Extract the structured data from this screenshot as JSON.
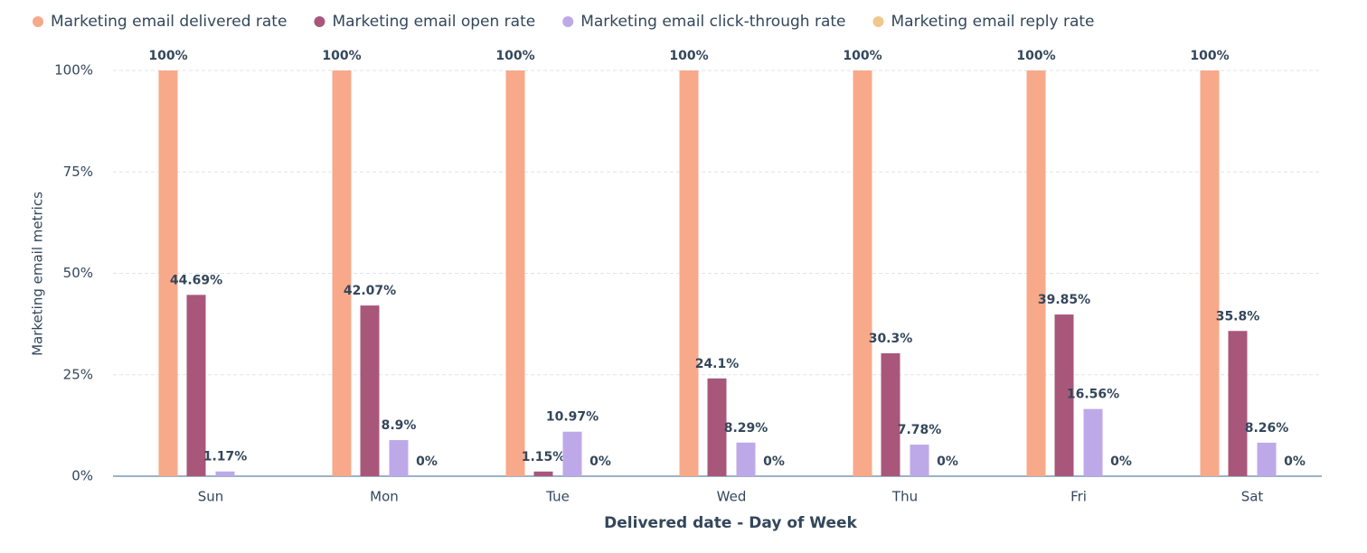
{
  "chart_data": {
    "type": "bar",
    "x_label": "Delivered date - Day of Week",
    "y_label": "Marketing email metrics",
    "categories": [
      "Sun",
      "Mon",
      "Tue",
      "Wed",
      "Thu",
      "Fri",
      "Sat"
    ],
    "series": [
      {
        "name": "Marketing email delivered rate",
        "color": "#f8a98a",
        "values": [
          100,
          100,
          100,
          100,
          100,
          100,
          100
        ],
        "value_labels": [
          "100%",
          "100%",
          "100%",
          "100%",
          "100%",
          "100%",
          "100%"
        ]
      },
      {
        "name": "Marketing email open rate",
        "color": "#a8577a",
        "values": [
          44.69,
          42.07,
          1.15,
          24.1,
          30.3,
          39.85,
          35.8
        ],
        "value_labels": [
          "44.69%",
          "42.07%",
          "1.15%",
          "24.1%",
          "30.3%",
          "39.85%",
          "35.8%"
        ]
      },
      {
        "name": "Marketing email click-through rate",
        "color": "#bda9e8",
        "values": [
          1.17,
          8.9,
          10.97,
          8.29,
          7.78,
          16.56,
          8.26
        ],
        "value_labels": [
          "1.17%",
          "8.9%",
          "10.97%",
          "8.29%",
          "7.78%",
          "16.56%",
          "8.26%"
        ]
      },
      {
        "name": "Marketing email reply rate",
        "color": "#f0c88e",
        "values": [
          null,
          0,
          0,
          0,
          0,
          0,
          0
        ],
        "value_labels": [
          null,
          "0%",
          "0%",
          "0%",
          "0%",
          "0%",
          "0%"
        ]
      }
    ],
    "ylim": [
      0,
      100
    ],
    "yticks": [
      {
        "value": 0,
        "label": "0%"
      },
      {
        "value": 25,
        "label": "25%"
      },
      {
        "value": 50,
        "label": "50%"
      },
      {
        "value": 75,
        "label": "75%"
      },
      {
        "value": 100,
        "label": "100%"
      }
    ],
    "grid": true,
    "legend": "top"
  }
}
